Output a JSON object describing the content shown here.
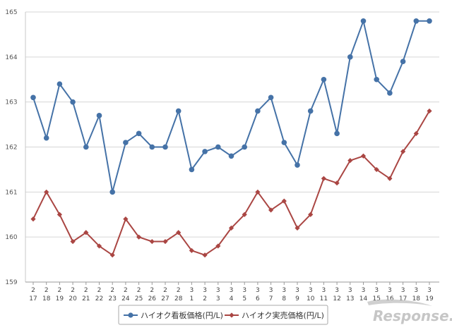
{
  "chart_data": {
    "type": "line",
    "title": "",
    "xlabel": "",
    "ylabel": "",
    "ylim": [
      159,
      165
    ],
    "yticks": [
      "159",
      "160",
      "161",
      "162",
      "163",
      "164",
      "165"
    ],
    "grid": true,
    "legend_position": "bottom",
    "categories": [
      {
        "month": "2",
        "day": "17"
      },
      {
        "month": "2",
        "day": "18"
      },
      {
        "month": "2",
        "day": "19"
      },
      {
        "month": "2",
        "day": "20"
      },
      {
        "month": "2",
        "day": "21"
      },
      {
        "month": "2",
        "day": "22"
      },
      {
        "month": "2",
        "day": "23"
      },
      {
        "month": "2",
        "day": "24"
      },
      {
        "month": "2",
        "day": "25"
      },
      {
        "month": "2",
        "day": "26"
      },
      {
        "month": "2",
        "day": "27"
      },
      {
        "month": "2",
        "day": "28"
      },
      {
        "month": "3",
        "day": "1"
      },
      {
        "month": "3",
        "day": "2"
      },
      {
        "month": "3",
        "day": "3"
      },
      {
        "month": "3",
        "day": "4"
      },
      {
        "month": "3",
        "day": "5"
      },
      {
        "month": "3",
        "day": "6"
      },
      {
        "month": "3",
        "day": "7"
      },
      {
        "month": "3",
        "day": "8"
      },
      {
        "month": "3",
        "day": "9"
      },
      {
        "month": "3",
        "day": "10"
      },
      {
        "month": "3",
        "day": "11"
      },
      {
        "month": "3",
        "day": "12"
      },
      {
        "month": "3",
        "day": "13"
      },
      {
        "month": "3",
        "day": "14"
      },
      {
        "month": "3",
        "day": "15"
      },
      {
        "month": "3",
        "day": "16"
      },
      {
        "month": "3",
        "day": "17"
      },
      {
        "month": "3",
        "day": "18"
      },
      {
        "month": "3",
        "day": "19"
      }
    ],
    "series": [
      {
        "name": "ハイオク看板価格(円/L)",
        "color": "#4572A7",
        "marker": "circle",
        "values": [
          163.1,
          162.2,
          163.4,
          163.0,
          162.0,
          162.7,
          161.0,
          162.1,
          162.3,
          162.0,
          162.0,
          162.8,
          161.5,
          161.9,
          162.0,
          161.8,
          162.0,
          162.8,
          163.1,
          162.1,
          161.6,
          162.8,
          163.5,
          162.3,
          164.0,
          164.8,
          163.5,
          163.2,
          163.9,
          164.8,
          164.8
        ]
      },
      {
        "name": "ハイオク実売価格(円/L)",
        "color": "#AA4643",
        "marker": "diamond",
        "values": [
          160.4,
          161.0,
          160.5,
          159.9,
          160.1,
          159.8,
          159.6,
          160.4,
          160.0,
          159.9,
          159.9,
          160.1,
          159.7,
          159.6,
          159.8,
          160.2,
          160.5,
          161.0,
          160.6,
          160.8,
          160.2,
          160.5,
          161.3,
          161.2,
          161.7,
          161.8,
          161.5,
          161.3,
          161.9,
          162.3,
          162.8
        ]
      }
    ]
  },
  "watermark": {
    "text": "Response."
  }
}
